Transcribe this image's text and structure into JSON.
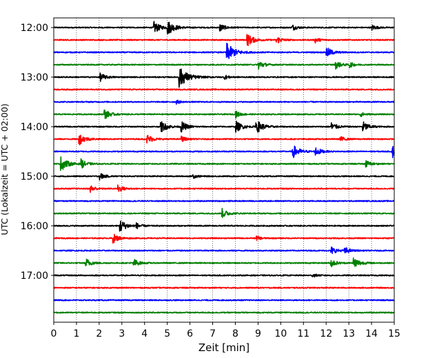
{
  "chart_data": {
    "type": "line",
    "title": "",
    "xlabel": "Zeit  [min]",
    "ylabel": "UTC (Lokalzeit = UTC + 02:00)",
    "xlim": [
      0,
      15
    ],
    "x_ticks": [
      "0",
      "1",
      "2",
      "3",
      "4",
      "5",
      "6",
      "7",
      "8",
      "9",
      "10",
      "11",
      "12",
      "13",
      "14",
      "15"
    ],
    "y_ticks": [
      "12:00",
      "13:00",
      "14:00",
      "15:00",
      "16:00",
      "17:00"
    ],
    "grid": "vertical dotted at each minute",
    "trace_colors": [
      "#000000",
      "#ff0000",
      "#0000ff",
      "#008000"
    ],
    "rows": [
      {
        "start": "12:00",
        "color": "#000000",
        "events": [
          [
            4.4,
            1.0
          ],
          [
            5.0,
            1.2
          ],
          [
            7.3,
            0.7
          ],
          [
            10.5,
            0.5
          ],
          [
            14.0,
            0.5
          ]
        ]
      },
      {
        "start": "12:15",
        "color": "#ff0000",
        "events": [
          [
            8.5,
            1.1
          ],
          [
            9.8,
            0.7
          ],
          [
            11.5,
            0.5
          ]
        ]
      },
      {
        "start": "12:30",
        "color": "#0000ff",
        "events": [
          [
            7.6,
            1.6
          ],
          [
            12.0,
            0.9
          ]
        ]
      },
      {
        "start": "12:45",
        "color": "#008000",
        "events": [
          [
            9.0,
            0.8
          ],
          [
            12.4,
            0.7
          ],
          [
            13.0,
            0.5
          ]
        ]
      },
      {
        "start": "13:00",
        "color": "#000000",
        "events": [
          [
            2.0,
            0.8
          ],
          [
            5.5,
            1.8
          ],
          [
            7.5,
            0.4
          ]
        ]
      },
      {
        "start": "13:15",
        "color": "#ff0000",
        "events": []
      },
      {
        "start": "13:30",
        "color": "#0000ff",
        "events": [
          [
            5.4,
            0.3
          ]
        ]
      },
      {
        "start": "13:45",
        "color": "#008000",
        "events": [
          [
            2.2,
            0.9
          ],
          [
            8.0,
            0.6
          ],
          [
            13.5,
            0.4
          ]
        ]
      },
      {
        "start": "14:00",
        "color": "#000000",
        "events": [
          [
            4.7,
            1.0
          ],
          [
            5.6,
            0.9
          ],
          [
            8.0,
            1.0
          ],
          [
            8.9,
            1.2
          ],
          [
            12.2,
            0.8
          ],
          [
            13.6,
            0.9
          ]
        ]
      },
      {
        "start": "14:15",
        "color": "#ff0000",
        "events": [
          [
            1.1,
            1.0
          ],
          [
            4.1,
            0.8
          ],
          [
            5.6,
            0.5
          ],
          [
            12.6,
            0.5
          ]
        ]
      },
      {
        "start": "14:30",
        "color": "#0000ff",
        "events": [
          [
            10.5,
            1.2
          ],
          [
            11.5,
            0.8
          ],
          [
            14.9,
            1.1
          ]
        ]
      },
      {
        "start": "14:45",
        "color": "#008000",
        "events": [
          [
            0.3,
            1.2
          ],
          [
            1.2,
            0.7
          ],
          [
            13.7,
            0.7
          ]
        ]
      },
      {
        "start": "15:00",
        "color": "#000000",
        "events": [
          [
            2.0,
            0.6
          ],
          [
            6.1,
            0.4
          ]
        ]
      },
      {
        "start": "15:15",
        "color": "#ff0000",
        "events": [
          [
            1.6,
            0.6
          ],
          [
            2.8,
            0.7
          ]
        ]
      },
      {
        "start": "15:30",
        "color": "#0000ff",
        "events": []
      },
      {
        "start": "15:45",
        "color": "#008000",
        "events": [
          [
            7.4,
            0.8
          ]
        ]
      },
      {
        "start": "16:00",
        "color": "#000000",
        "events": [
          [
            2.9,
            1.1
          ],
          [
            3.6,
            0.5
          ]
        ]
      },
      {
        "start": "16:15",
        "color": "#ff0000",
        "events": [
          [
            2.6,
            0.8
          ],
          [
            8.9,
            0.4
          ]
        ]
      },
      {
        "start": "16:30",
        "color": "#0000ff",
        "events": [
          [
            12.2,
            0.7
          ],
          [
            12.8,
            0.6
          ]
        ]
      },
      {
        "start": "16:45",
        "color": "#008000",
        "events": [
          [
            1.4,
            0.8
          ],
          [
            3.5,
            0.7
          ],
          [
            12.2,
            0.7
          ],
          [
            13.2,
            1.0
          ]
        ]
      },
      {
        "start": "17:00",
        "color": "#000000",
        "events": [
          [
            11.4,
            0.3
          ]
        ]
      },
      {
        "start": "17:15",
        "color": "#ff0000",
        "events": []
      },
      {
        "start": "17:30",
        "color": "#0000ff",
        "events": []
      },
      {
        "start": "17:45",
        "color": "#008000",
        "events": []
      }
    ]
  }
}
